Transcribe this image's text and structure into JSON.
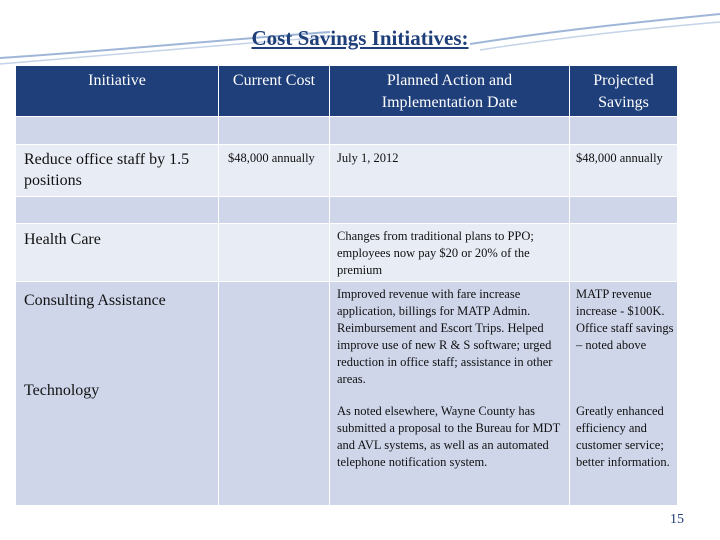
{
  "title": "Cost Savings Initiatives:",
  "table": {
    "header": [
      "Initiative",
      "Current Cost",
      "Planned Action and Implementation Date",
      "Projected Savings"
    ],
    "rows": [
      {
        "initiative": "Reduce office staff by 1.5 positions",
        "current_cost": "$48,000 annually",
        "planned_action": "July 1, 2012",
        "projected_savings": "$48,000 annually"
      },
      {
        "initiative": "Health Care",
        "planned_action": "Changes from traditional plans to PPO; employees now pay $20 or 20% of the premium"
      },
      {
        "initiative": "Consulting Assistance",
        "planned_action": "Improved revenue with fare increase application, billings for MATP Admin. Reimbursement and Escort Trips. Helped improve use of new R & S software; urged reduction in office staff; assistance in other areas.",
        "projected_savings": "MATP revenue increase - $100K. Office staff savings – noted above"
      },
      {
        "initiative": "Technology",
        "planned_action": "As noted elsewhere, Wayne County has submitted a proposal to the Bureau for MDT and AVL systems, as well as an automated telephone notification system.",
        "projected_savings": "Greatly enhanced efficiency and customer service; better information."
      }
    ]
  },
  "page_number": "15"
}
